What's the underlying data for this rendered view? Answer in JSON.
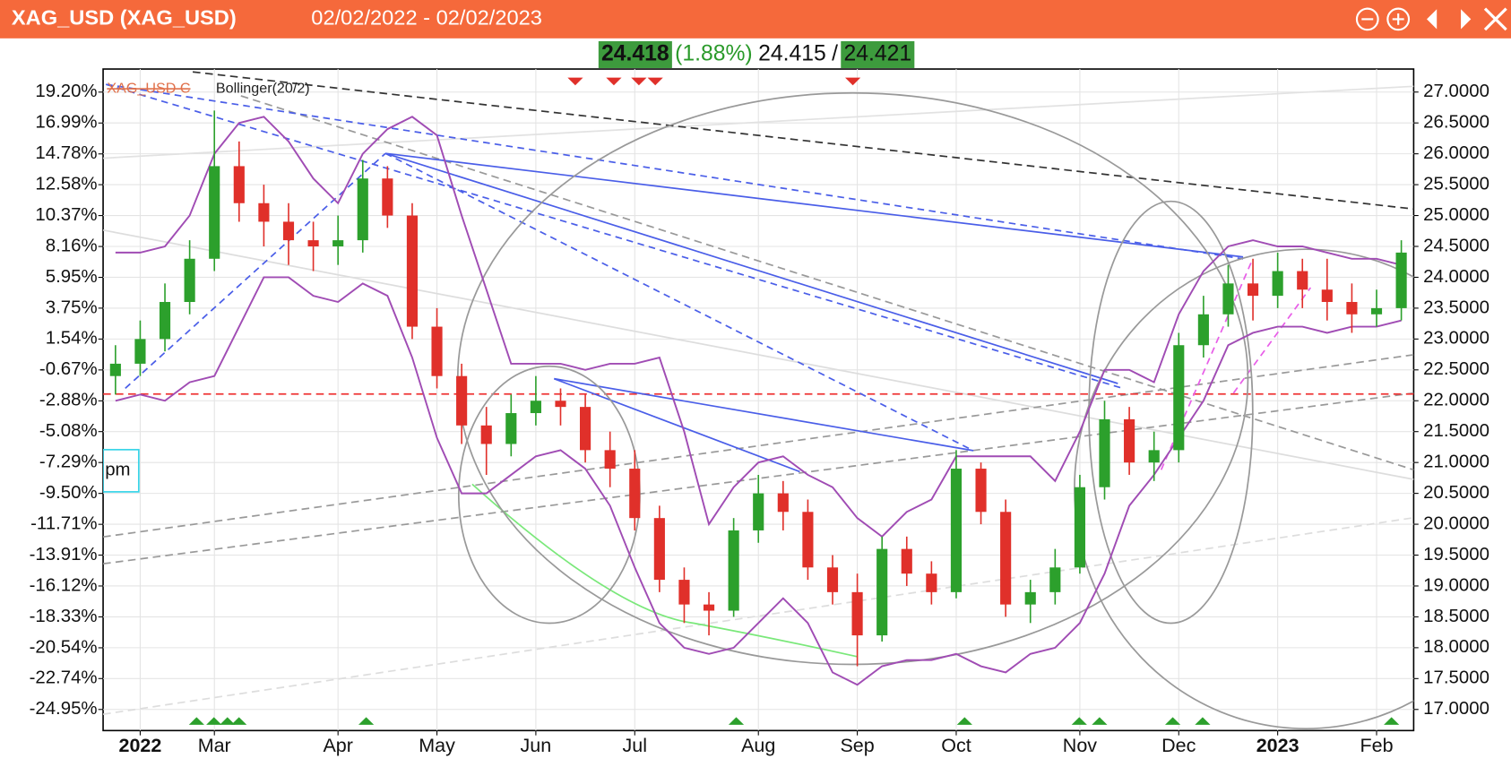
{
  "header": {
    "title": "XAG_USD (XAG_USD)",
    "range": "02/02/2022 - 02/02/2023"
  },
  "quote": {
    "last": "24.418",
    "change": "(1.88%)",
    "bid": "24.415",
    "separator": "/",
    "ask": "24.421"
  },
  "chart_data": {
    "type": "candlestick",
    "name": "XAG_USD C",
    "up_color": "#2ca02c",
    "down_color": "#e0302a",
    "categories": [
      null,
      "2022",
      null,
      null,
      "Mar",
      null,
      null,
      null,
      null,
      "Apr",
      null,
      null,
      null,
      "May",
      null,
      null,
      null,
      "Jun",
      null,
      null,
      null,
      "Jul",
      null,
      null,
      null,
      null,
      "Aug",
      null,
      null,
      null,
      "Sep",
      null,
      null,
      null,
      "Oct",
      null,
      null,
      null,
      null,
      "Nov",
      null,
      null,
      null,
      "Dec",
      null,
      null,
      null,
      "2023",
      null,
      null,
      null,
      "Feb",
      null
    ],
    "open": [
      22.4,
      22.6,
      23.0,
      23.6,
      24.3,
      25.8,
      25.2,
      24.9,
      24.6,
      24.5,
      24.6,
      25.6,
      25.0,
      23.2,
      22.4,
      21.6,
      21.3,
      21.8,
      22.0,
      21.9,
      21.2,
      20.9,
      20.1,
      19.1,
      18.7,
      18.6,
      19.9,
      20.5,
      20.2,
      19.3,
      18.9,
      18.2,
      19.6,
      19.2,
      18.9,
      20.9,
      20.2,
      18.7,
      18.9,
      19.3,
      20.6,
      21.7,
      21.0,
      21.2,
      22.9,
      23.4,
      23.9,
      23.7,
      24.1,
      23.8,
      23.6,
      23.4,
      23.5
    ],
    "high": [
      22.9,
      23.3,
      23.9,
      24.6,
      26.7,
      26.2,
      25.5,
      25.2,
      24.9,
      25.0,
      25.9,
      25.8,
      25.2,
      23.5,
      22.6,
      21.9,
      22.1,
      22.4,
      22.2,
      22.1,
      21.5,
      21.2,
      20.3,
      19.3,
      18.9,
      20.1,
      20.8,
      20.7,
      20.4,
      19.5,
      19.2,
      19.8,
      19.8,
      19.4,
      21.2,
      21.0,
      20.4,
      19.1,
      19.6,
      20.8,
      22.0,
      21.9,
      21.5,
      23.1,
      23.7,
      24.2,
      24.3,
      24.4,
      24.3,
      24.3,
      23.9,
      23.8,
      24.6
    ],
    "low": [
      22.1,
      22.4,
      22.8,
      23.4,
      24.1,
      24.9,
      24.5,
      24.2,
      24.1,
      24.2,
      24.4,
      24.8,
      23.0,
      22.2,
      21.3,
      20.8,
      21.1,
      21.6,
      21.6,
      21.0,
      20.6,
      19.9,
      18.9,
      18.4,
      18.2,
      18.5,
      19.7,
      19.9,
      19.1,
      18.7,
      17.7,
      18.1,
      19.0,
      18.7,
      18.8,
      20.0,
      18.5,
      18.4,
      18.7,
      19.2,
      20.4,
      20.8,
      20.7,
      21.0,
      22.7,
      23.2,
      23.3,
      23.5,
      23.5,
      23.3,
      23.1,
      23.2,
      23.3
    ],
    "close": [
      22.6,
      23.0,
      23.6,
      24.3,
      25.8,
      25.2,
      24.9,
      24.6,
      24.5,
      24.6,
      25.6,
      25.0,
      23.2,
      22.4,
      21.6,
      21.3,
      21.8,
      22.0,
      21.9,
      21.2,
      20.9,
      20.1,
      19.1,
      18.7,
      18.6,
      19.9,
      20.5,
      20.2,
      19.3,
      18.9,
      18.2,
      19.6,
      19.2,
      18.9,
      20.9,
      20.2,
      18.7,
      18.9,
      19.3,
      20.6,
      21.7,
      21.0,
      21.2,
      22.9,
      23.4,
      23.9,
      23.7,
      24.1,
      23.8,
      23.6,
      23.4,
      23.5,
      24.4
    ],
    "axis": "y2",
    "indicator": {
      "name": "Bollinger(20/2)",
      "color": "#a04cb4",
      "upper": [
        24.4,
        24.4,
        24.5,
        25.0,
        26.0,
        26.5,
        26.6,
        26.2,
        25.6,
        25.2,
        26.0,
        26.4,
        26.6,
        26.3,
        25.0,
        23.8,
        22.6,
        22.6,
        22.6,
        22.5,
        22.6,
        22.6,
        22.7,
        21.5,
        20.0,
        20.6,
        21.0,
        21.1,
        20.8,
        20.6,
        20.1,
        19.8,
        20.2,
        20.4,
        21.1,
        21.1,
        21.1,
        21.1,
        20.7,
        21.5,
        22.5,
        22.5,
        22.3,
        23.4,
        24.1,
        24.5,
        24.6,
        24.5,
        24.5,
        24.4,
        24.3,
        24.3,
        24.2
      ],
      "lower": [
        22.0,
        22.1,
        22.0,
        22.3,
        22.4,
        23.2,
        24.0,
        24.0,
        23.7,
        23.6,
        23.9,
        23.7,
        22.7,
        21.4,
        20.5,
        20.5,
        20.8,
        21.1,
        21.2,
        20.9,
        20.3,
        19.3,
        18.4,
        18.0,
        17.9,
        18.0,
        18.4,
        18.8,
        18.4,
        17.6,
        17.4,
        17.7,
        17.8,
        17.8,
        17.9,
        17.7,
        17.6,
        17.9,
        18.0,
        18.4,
        19.2,
        20.3,
        20.8,
        21.4,
        22.0,
        22.9,
        23.1,
        23.2,
        23.2,
        23.1,
        23.2,
        23.2,
        23.3
      ]
    },
    "annotation": "pm",
    "ylim": [
      -26.46,
      20.85
    ],
    "yticks": [
      {
        "value": 19.2,
        "label": "19.20%"
      },
      {
        "value": 16.99,
        "label": "16.99%"
      },
      {
        "value": 14.78,
        "label": "14.78%"
      },
      {
        "value": 12.58,
        "label": "12.58%"
      },
      {
        "value": 10.37,
        "label": "10.37%"
      },
      {
        "value": 8.16,
        "label": "8.16%"
      },
      {
        "value": 5.95,
        "label": "5.95%"
      },
      {
        "value": 3.75,
        "label": "3.75%"
      },
      {
        "value": 1.54,
        "label": "1.54%"
      },
      {
        "value": -0.67,
        "label": "-0.67%"
      },
      {
        "value": -2.88,
        "label": "-2.88%"
      },
      {
        "value": -5.08,
        "label": "-5.08%"
      },
      {
        "value": -7.29,
        "label": "-7.29%"
      },
      {
        "value": -9.5,
        "label": "-9.50%"
      },
      {
        "value": -11.71,
        "label": "-11.71%"
      },
      {
        "value": -13.91,
        "label": "-13.91%"
      },
      {
        "value": -16.12,
        "label": "-16.12%"
      },
      {
        "value": -18.33,
        "label": "-18.33%"
      },
      {
        "value": -20.54,
        "label": "-20.54%"
      },
      {
        "value": -22.74,
        "label": "-22.74%"
      },
      {
        "value": -24.95,
        "label": "-24.95%"
      }
    ],
    "y2lim": [
      16.658,
      27.373
    ],
    "y2ticks": [
      {
        "value": 17,
        "label": "17.0000"
      },
      {
        "value": 17.5,
        "label": "17.5000"
      },
      {
        "value": 18,
        "label": "18.0000"
      },
      {
        "value": 18.5,
        "label": "18.5000"
      },
      {
        "value": 19,
        "label": "19.0000"
      },
      {
        "value": 19.5,
        "label": "19.5000"
      },
      {
        "value": 20,
        "label": "20.0000"
      },
      {
        "value": 20.5,
        "label": "20.5000"
      },
      {
        "value": 21,
        "label": "21.0000"
      },
      {
        "value": 21.5,
        "label": "21.5000"
      },
      {
        "value": 22,
        "label": "22.0000"
      },
      {
        "value": 22.5,
        "label": "22.5000"
      },
      {
        "value": 23,
        "label": "23.0000"
      },
      {
        "value": 23.5,
        "label": "23.5000"
      },
      {
        "value": 24,
        "label": "24.0000"
      },
      {
        "value": 24.5,
        "label": "24.5000"
      },
      {
        "value": 25,
        "label": "25.0000"
      },
      {
        "value": 25.5,
        "label": "25.5000"
      },
      {
        "value": 26,
        "label": "26.0000"
      },
      {
        "value": 26.5,
        "label": "26.5000"
      },
      {
        "value": 27,
        "label": "27.0000"
      }
    ],
    "grid": true
  }
}
